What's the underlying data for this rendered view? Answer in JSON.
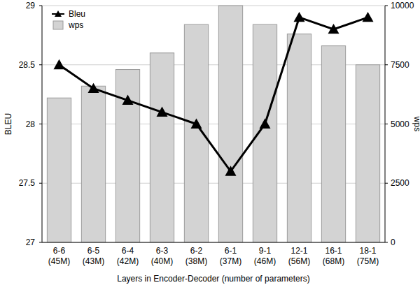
{
  "chart_data": {
    "type": "bar",
    "xlabel": "Layers in Encoder-Decoder (number of parameters)",
    "ylabel": "BLEU",
    "y2label": "wps",
    "categories": [
      "6-6\n(45M)",
      "6-5\n(43M)",
      "6-4\n(42M)",
      "6-3\n(40M)",
      "6-2\n(38M)",
      "6-1\n(37M)",
      "9-1\n(46M)",
      "12-1\n(56M)",
      "16-1\n(68M)",
      "18-1\n(75M)"
    ],
    "series": [
      {
        "name": "Bleu",
        "type": "line",
        "color": "#000000",
        "marker": "triangle",
        "values": [
          28.5,
          28.3,
          28.2,
          28.1,
          28.0,
          27.6,
          28.0,
          28.9,
          28.8,
          28.9
        ]
      },
      {
        "name": "wps",
        "type": "bar",
        "color": "#d3d3d3",
        "axis": "y2",
        "values": [
          6100,
          6600,
          7300,
          8000,
          9200,
          10000,
          9200,
          8800,
          8300,
          7500
        ]
      }
    ],
    "ylim": [
      27,
      29
    ],
    "yticks": [
      27,
      27.5,
      28,
      28.5,
      29
    ],
    "y2lim": [
      0,
      10000
    ],
    "y2ticks": [
      0,
      2500,
      5000,
      7500,
      10000
    ],
    "grid": true,
    "legend": "upper left"
  }
}
